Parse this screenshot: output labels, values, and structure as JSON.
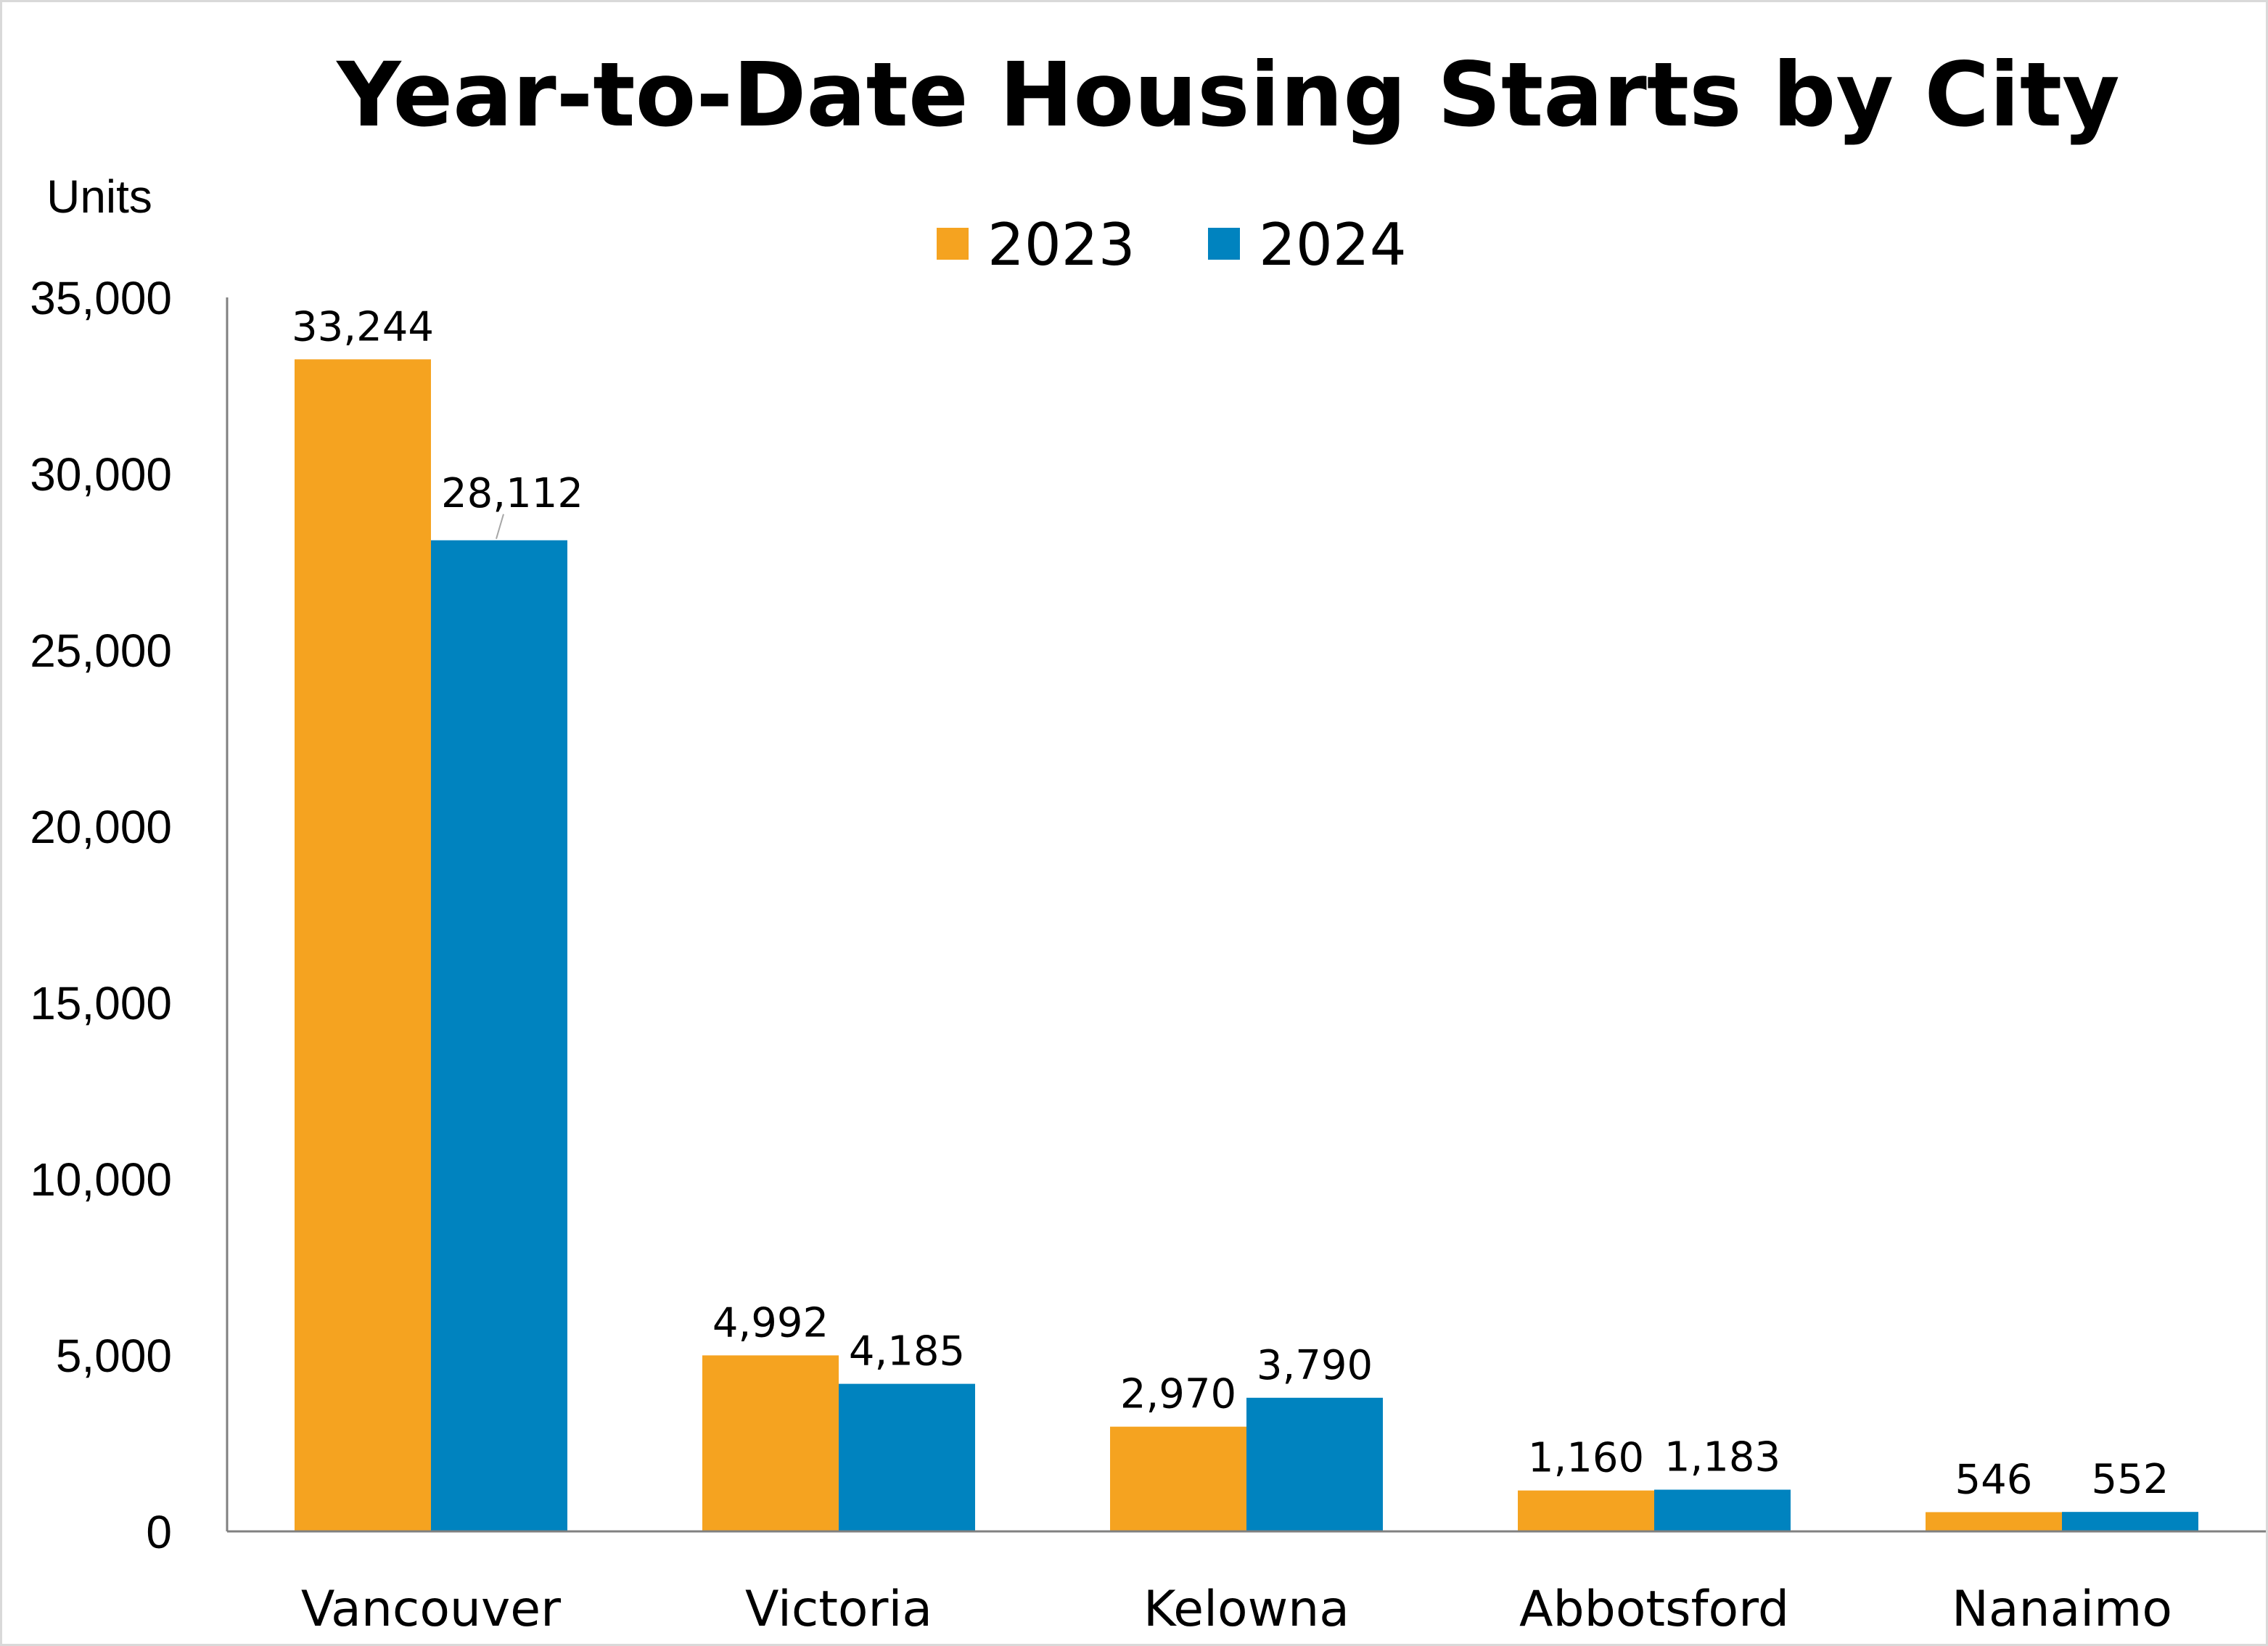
{
  "chart_data": {
    "type": "bar",
    "title": "Year-to-Date Housing Starts by City",
    "ylabel": "Units",
    "xlabel": "",
    "categories": [
      "Vancouver",
      "Victoria",
      "Kelowna",
      "Abbotsford",
      "Nanaimo"
    ],
    "series": [
      {
        "name": "2023",
        "color": "#f5a320",
        "values": [
          33244,
          4992,
          2970,
          1160,
          546
        ],
        "labels": [
          "33,244",
          "4,992",
          "2,970",
          "1,160",
          "546"
        ]
      },
      {
        "name": "2024",
        "color": "#0083bf",
        "values": [
          28112,
          4185,
          3790,
          1183,
          552
        ],
        "labels": [
          "28,112",
          "4,185",
          "3,790",
          "1,183",
          "552"
        ]
      }
    ],
    "ylim": [
      0,
      35000
    ],
    "yticks": [
      0,
      5000,
      10000,
      15000,
      20000,
      25000,
      30000,
      35000
    ],
    "ytick_labels": [
      "0",
      "5,000",
      "10,000",
      "15,000",
      "20,000",
      "25,000",
      "30,000",
      "35,000"
    ],
    "legend_position": "top-center",
    "grid": false
  }
}
